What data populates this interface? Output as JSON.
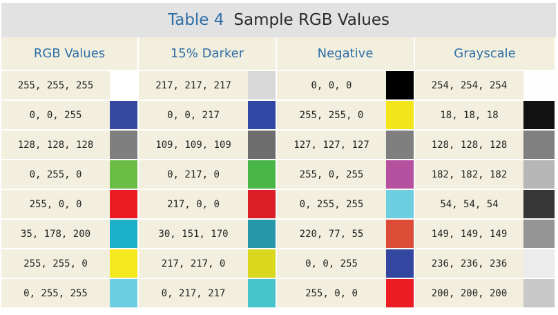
{
  "title": {
    "label": "Table 4",
    "text": "Sample RGB Values"
  },
  "headers": [
    "RGB Values",
    "15% Darker",
    "Negative",
    "Grayscale"
  ],
  "rows": [
    {
      "cells": [
        {
          "text": "255, 255, 255",
          "color": "#ffffff"
        },
        {
          "text": "217, 217, 217",
          "color": "#d9d9d9"
        },
        {
          "text": "0, 0, 0",
          "color": "#000000"
        },
        {
          "text": "254, 254, 254",
          "color": "#fefefe"
        }
      ]
    },
    {
      "cells": [
        {
          "text": "0, 0, 255",
          "color": "#3648a0"
        },
        {
          "text": "0, 0, 217",
          "color": "#3246a3"
        },
        {
          "text": "255, 255, 0",
          "color": "#f2e51a"
        },
        {
          "text": "18, 18, 18",
          "color": "#121212"
        }
      ]
    },
    {
      "cells": [
        {
          "text": "128, 128, 128",
          "color": "#7f7f7f"
        },
        {
          "text": "109, 109, 109",
          "color": "#6d6d6d"
        },
        {
          "text": "127, 127, 127",
          "color": "#7f7f7f"
        },
        {
          "text": "128, 128, 128",
          "color": "#808080"
        }
      ]
    },
    {
      "cells": [
        {
          "text": "0, 255, 0",
          "color": "#6cbd45"
        },
        {
          "text": "0, 217, 0",
          "color": "#4ab648"
        },
        {
          "text": "255, 0, 255",
          "color": "#b5519e"
        },
        {
          "text": "182, 182, 182",
          "color": "#b6b6b6"
        }
      ]
    },
    {
      "cells": [
        {
          "text": "255, 0, 0",
          "color": "#ec1c24"
        },
        {
          "text": "217, 0, 0",
          "color": "#da1f26"
        },
        {
          "text": "0, 255, 255",
          "color": "#6dcde1"
        },
        {
          "text": "54, 54, 54",
          "color": "#363636"
        }
      ]
    },
    {
      "cells": [
        {
          "text": "35, 178, 200",
          "color": "#1cb1c8"
        },
        {
          "text": "30, 151, 170",
          "color": "#2698aa"
        },
        {
          "text": "220, 77, 55",
          "color": "#dc4c37"
        },
        {
          "text": "149, 149, 149",
          "color": "#959595"
        }
      ]
    },
    {
      "cells": [
        {
          "text": "255, 255, 0",
          "color": "#f4e81e"
        },
        {
          "text": "217, 217, 0",
          "color": "#d9d71e"
        },
        {
          "text": "0, 0, 255",
          "color": "#3447a0"
        },
        {
          "text": "236, 236, 236",
          "color": "#ececec"
        }
      ]
    },
    {
      "cells": [
        {
          "text": "0, 255, 255",
          "color": "#6dcde1"
        },
        {
          "text": "0, 217, 217",
          "color": "#47c4cc"
        },
        {
          "text": "255, 0, 0",
          "color": "#ec1c24"
        },
        {
          "text": "200, 200, 200",
          "color": "#c8c8c8"
        }
      ]
    }
  ]
}
